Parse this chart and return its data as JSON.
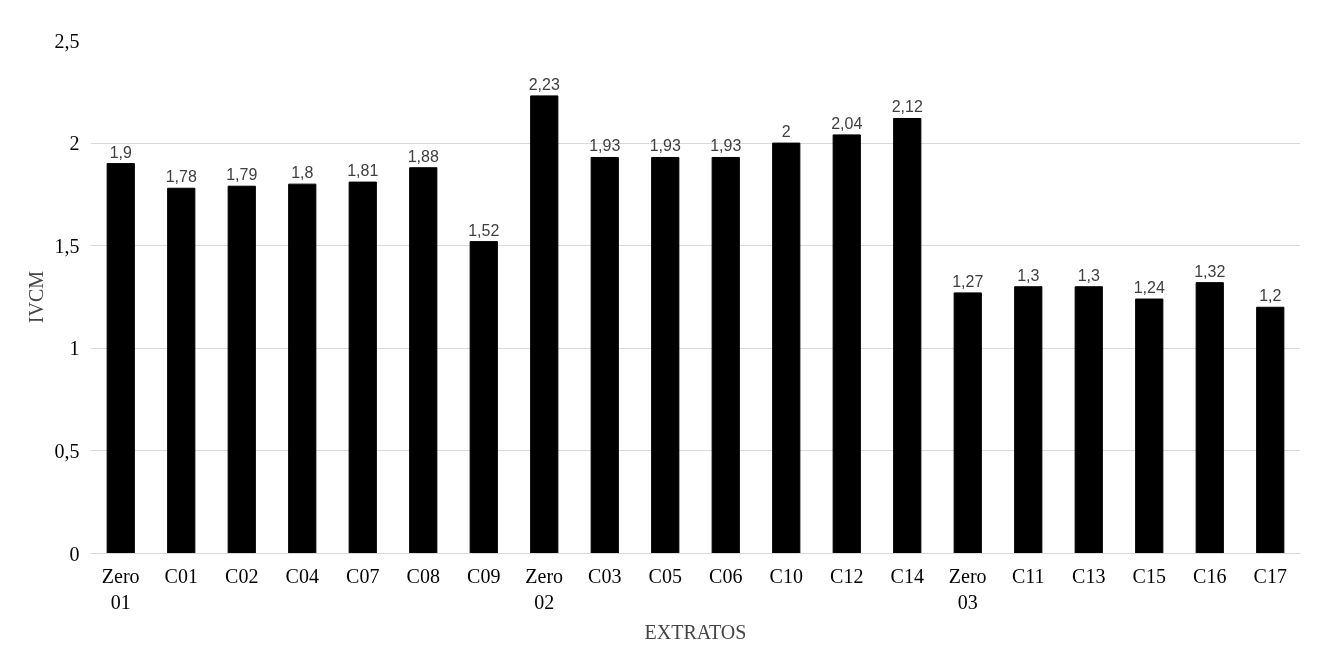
{
  "chart_data": {
    "type": "bar",
    "xlabel": "EXTRATOS",
    "ylabel": "IVCM",
    "categories": [
      "Zero 01",
      "C01",
      "C02",
      "C04",
      "C07",
      "C08",
      "C09",
      "Zero 02",
      "C03",
      "C05",
      "C06",
      "C10",
      "C12",
      "C14",
      "Zero 03",
      "C11",
      "C13",
      "C15",
      "C16",
      "C17"
    ],
    "values": [
      1.9,
      1.78,
      1.79,
      1.8,
      1.81,
      1.88,
      1.52,
      2.23,
      1.93,
      1.93,
      1.93,
      2,
      2.04,
      2.12,
      1.27,
      1.3,
      1.3,
      1.24,
      1.32,
      1.2
    ],
    "value_labels": [
      "1,9",
      "1,78",
      "1,79",
      "1,8",
      "1,81",
      "1,88",
      "1,52",
      "2,23",
      "1,93",
      "1,93",
      "1,93",
      "2",
      "2,04",
      "2,12",
      "1,27",
      "1,3",
      "1,3",
      "1,24",
      "1,32",
      "1,2"
    ],
    "color": "#000000",
    "ylim": [
      0,
      2.5
    ],
    "yticks": [
      0,
      {
        "value": 0.5,
        "label": "0,5"
      },
      1,
      {
        "value": 1.5,
        "label": "1,5"
      },
      2,
      {
        "value": 2.5,
        "label": "2,5"
      }
    ],
    "grid": "y"
  }
}
